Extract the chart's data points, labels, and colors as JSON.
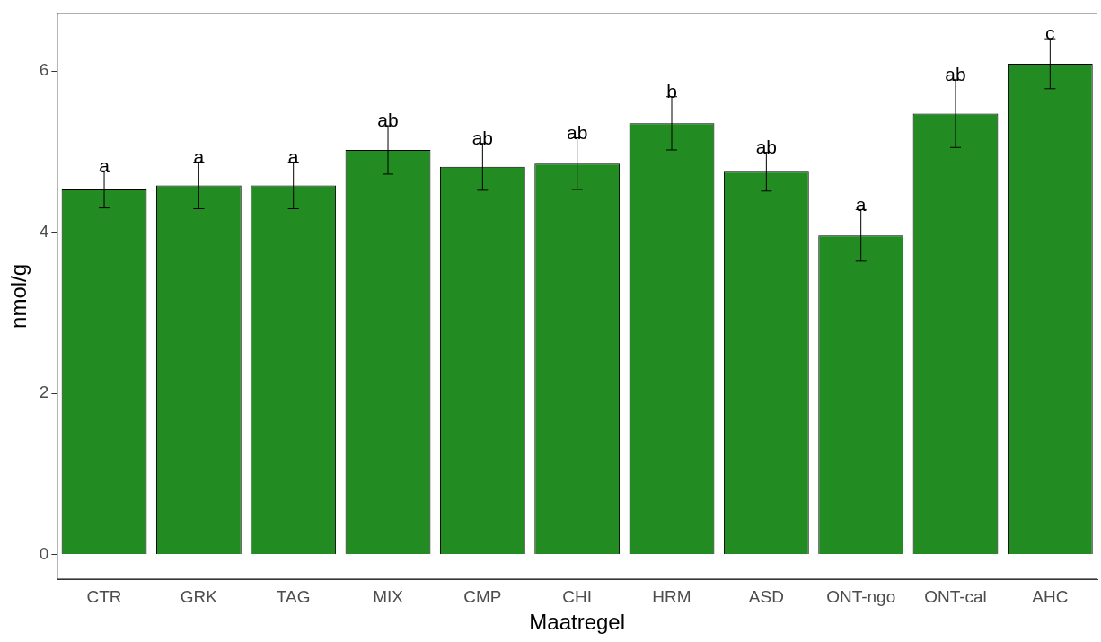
{
  "chart_data": {
    "type": "bar",
    "xlabel": "Maatregel",
    "ylabel": "nmol/g",
    "categories": [
      "CTR",
      "GRK",
      "TAG",
      "MIX",
      "CMP",
      "CHI",
      "HRM",
      "ASD",
      "ONT-ngo",
      "ONT-cal",
      "AHC"
    ],
    "values": [
      4.53,
      4.58,
      4.58,
      5.02,
      4.81,
      4.85,
      5.35,
      4.75,
      3.96,
      5.47,
      6.09
    ],
    "errors": [
      0.23,
      0.29,
      0.29,
      0.3,
      0.29,
      0.32,
      0.33,
      0.24,
      0.32,
      0.42,
      0.31
    ],
    "color": "#228b22",
    "ylim": [
      -0.31,
      6.72
    ],
    "yticks": [
      0,
      2,
      4,
      6
    ],
    "grid": false,
    "legend": false,
    "annotations": [
      {
        "text": "a",
        "x": "CTR",
        "y": 4.76
      },
      {
        "text": "a",
        "x": "GRK",
        "y": 4.87
      },
      {
        "text": "a",
        "x": "TAG",
        "y": 4.87
      },
      {
        "text": "ab",
        "x": "MIX",
        "y": 5.32
      },
      {
        "text": "ab",
        "x": "CMP",
        "y": 5.1
      },
      {
        "text": "ab",
        "x": "CHI",
        "y": 5.17
      },
      {
        "text": "b",
        "x": "HRM",
        "y": 5.68
      },
      {
        "text": "ab",
        "x": "ASD",
        "y": 4.99
      },
      {
        "text": "a",
        "x": "ONT-ngo",
        "y": 4.28
      },
      {
        "text": "ab",
        "x": "ONT-cal",
        "y": 5.89
      },
      {
        "text": "c",
        "x": "AHC",
        "y": 6.4
      }
    ]
  }
}
